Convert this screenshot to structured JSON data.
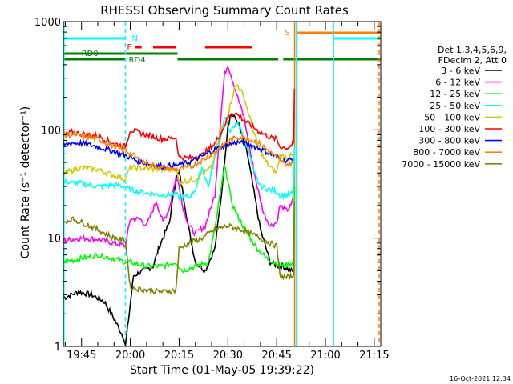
{
  "chart_data": {
    "type": "line",
    "title": "RHESSI Observing Summary Count Rates",
    "ylabel": "Count Rate (s⁻¹ detector⁻¹)",
    "xlabel": "Start Time (01-May-05 19:39:22)",
    "yscale": "log",
    "ylim": [
      1,
      1000
    ],
    "xlim_minutes": [
      39.4,
      137.0
    ],
    "x_ticks": [
      {
        "t": 45,
        "label": "19:45"
      },
      {
        "t": 60,
        "label": "20:00"
      },
      {
        "t": 75,
        "label": "20:15"
      },
      {
        "t": 90,
        "label": "20:30"
      },
      {
        "t": 105,
        "label": "20:45"
      },
      {
        "t": 120,
        "label": "21:00"
      },
      {
        "t": 135,
        "label": "21:15"
      }
    ],
    "y_ticks": [
      {
        "v": 1,
        "label": "1"
      },
      {
        "v": 10,
        "label": "10"
      },
      {
        "v": 100,
        "label": "100"
      },
      {
        "v": 1000,
        "label": "1000"
      }
    ],
    "legend_header": [
      "Det 1,3,4,5,6,9,",
      "FDecim 2, Att 0"
    ],
    "legend_position": "right",
    "timestamp": "16-Oct-2021 12:34",
    "x_units": "minutes after 19:00 UT",
    "flag_labels": {
      "saa": "N",
      "flare": "F",
      "rd0": "RD0",
      "rd4": "RD4",
      "attenuator": "S"
    },
    "flag_bars": {
      "saa": {
        "color": "#00ffff",
        "segments": [
          [
            39.4,
            58.5
          ],
          [
            122.5,
            137.0
          ]
        ]
      },
      "flare": {
        "color": "#ff0000",
        "segments": [
          [
            61.5,
            63.5
          ],
          [
            67.0,
            74.0
          ],
          [
            83.0,
            97.5
          ]
        ]
      },
      "rd0": {
        "color": "#008000",
        "segments": [
          [
            39.4,
            74.5
          ]
        ]
      },
      "rd4": {
        "color": "#008000",
        "segments": [
          [
            39.4,
            58.5
          ],
          [
            74.5,
            105.5
          ],
          [
            107.0,
            137.0
          ]
        ]
      },
      "attenuator": {
        "color": "#ff8000",
        "segments": [
          [
            111.0,
            137.0
          ]
        ]
      }
    },
    "vertical_lines": [
      {
        "t": 39.6,
        "color": "#00ffff",
        "style": "solid"
      },
      {
        "t": 58.5,
        "color": "#00ffff",
        "style": "dashed"
      },
      {
        "t": 110.5,
        "color": "#ff8000",
        "style": "solid"
      },
      {
        "t": 111.0,
        "color": "#00ffff",
        "style": "solid"
      },
      {
        "t": 122.5,
        "color": "#00ffff",
        "style": "solid"
      },
      {
        "t": 136.5,
        "color": "#ff8000",
        "style": "dashed"
      }
    ],
    "series": [
      {
        "name": "3 - 6 keV",
        "color": "#000000",
        "points": [
          [
            39.5,
            2.8
          ],
          [
            44,
            3.2
          ],
          [
            48,
            3.0
          ],
          [
            52,
            2.6
          ],
          [
            55,
            1.8
          ],
          [
            58,
            1.2
          ],
          [
            58.5,
            1.0
          ],
          [
            61,
            4.5
          ],
          [
            64,
            5.0
          ],
          [
            67,
            5.5
          ],
          [
            69,
            8.5
          ],
          [
            72,
            14
          ],
          [
            74,
            35
          ],
          [
            75,
            40
          ],
          [
            76,
            28
          ],
          [
            78,
            12
          ],
          [
            80,
            6
          ],
          [
            83,
            5
          ],
          [
            86,
            8
          ],
          [
            88,
            25
          ],
          [
            90,
            110
          ],
          [
            91,
            140
          ],
          [
            93,
            120
          ],
          [
            96,
            60
          ],
          [
            100,
            12
          ],
          [
            103,
            6
          ],
          [
            105.5,
            5.5
          ],
          [
            107,
            5.5
          ],
          [
            109.5,
            5.0
          ],
          [
            110.2,
            4.8
          ]
        ]
      },
      {
        "name": "6 - 12 keV",
        "color": "#ff00ff",
        "points": [
          [
            39.5,
            9.5
          ],
          [
            45,
            10
          ],
          [
            50,
            9.8
          ],
          [
            55,
            9
          ],
          [
            58.5,
            8.5
          ],
          [
            60,
            15
          ],
          [
            63,
            15
          ],
          [
            65,
            13
          ],
          [
            68,
            22
          ],
          [
            70,
            14
          ],
          [
            72,
            19
          ],
          [
            74,
            36
          ],
          [
            75,
            32
          ],
          [
            76,
            20
          ],
          [
            78,
            13
          ],
          [
            80,
            11
          ],
          [
            83,
            13
          ],
          [
            86,
            25
          ],
          [
            88,
            150
          ],
          [
            89,
            330
          ],
          [
            90,
            400
          ],
          [
            91,
            320
          ],
          [
            93,
            200
          ],
          [
            95,
            130
          ],
          [
            97,
            60
          ],
          [
            99,
            30
          ],
          [
            101,
            17
          ],
          [
            103,
            13
          ],
          [
            105,
            14
          ],
          [
            106,
            20
          ],
          [
            108,
            18
          ],
          [
            109.5,
            20
          ],
          [
            110.2,
            24
          ]
        ]
      },
      {
        "name": "12 - 25 keV",
        "color": "#00ff00",
        "points": [
          [
            39.5,
            6
          ],
          [
            45,
            6.5
          ],
          [
            50,
            7
          ],
          [
            55,
            6.5
          ],
          [
            58.5,
            6
          ],
          [
            60,
            6
          ],
          [
            65,
            5.5
          ],
          [
            70,
            5.5
          ],
          [
            74,
            6
          ],
          [
            76,
            5
          ],
          [
            80,
            5.5
          ],
          [
            84,
            6
          ],
          [
            86,
            12
          ],
          [
            88,
            30
          ],
          [
            89,
            45
          ],
          [
            90,
            35
          ],
          [
            91,
            22
          ],
          [
            93,
            16
          ],
          [
            96,
            11
          ],
          [
            99,
            8
          ],
          [
            102,
            6.5
          ],
          [
            105,
            5.8
          ],
          [
            107,
            5.5
          ],
          [
            110.2,
            6
          ]
        ]
      },
      {
        "name": "25 - 50 keV",
        "color": "#00ffff",
        "points": [
          [
            39.5,
            33
          ],
          [
            45,
            32
          ],
          [
            50,
            30
          ],
          [
            55,
            31
          ],
          [
            58.5,
            30
          ],
          [
            60,
            28
          ],
          [
            65,
            26
          ],
          [
            70,
            25
          ],
          [
            74,
            25.5
          ],
          [
            75,
            24
          ],
          [
            78,
            24
          ],
          [
            80,
            28
          ],
          [
            82,
            45
          ],
          [
            84,
            30
          ],
          [
            86,
            55
          ],
          [
            88,
            90
          ],
          [
            89,
            130
          ],
          [
            90,
            110
          ],
          [
            91,
            95
          ],
          [
            93,
            120
          ],
          [
            94,
            100
          ],
          [
            96,
            70
          ],
          [
            98,
            40
          ],
          [
            100,
            30
          ],
          [
            103,
            28
          ],
          [
            105,
            27
          ],
          [
            106,
            25
          ],
          [
            108,
            25
          ],
          [
            110.2,
            26
          ]
        ]
      },
      {
        "name": "50 - 100 keV",
        "color": "#cccc00",
        "points": [
          [
            39.5,
            40
          ],
          [
            45,
            45
          ],
          [
            50,
            43
          ],
          [
            55,
            38
          ],
          [
            58.5,
            35
          ],
          [
            60,
            45
          ],
          [
            65,
            44
          ],
          [
            70,
            43
          ],
          [
            74,
            44
          ],
          [
            75,
            33
          ],
          [
            80,
            35
          ],
          [
            85,
            45
          ],
          [
            88,
            100
          ],
          [
            90,
            140
          ],
          [
            92,
            240
          ],
          [
            93,
            260
          ],
          [
            95,
            200
          ],
          [
            97,
            120
          ],
          [
            99,
            75
          ],
          [
            101,
            55
          ],
          [
            103,
            45
          ],
          [
            105,
            40
          ],
          [
            106,
            58
          ],
          [
            108,
            56
          ],
          [
            110.2,
            58
          ]
        ]
      },
      {
        "name": "100 - 300 keV",
        "color": "#ff0000",
        "points": [
          [
            39.5,
            88
          ],
          [
            42,
            95
          ],
          [
            45,
            92
          ],
          [
            50,
            88
          ],
          [
            55,
            75
          ],
          [
            58.5,
            70
          ],
          [
            60,
            100
          ],
          [
            65,
            90
          ],
          [
            70,
            82
          ],
          [
            74,
            85
          ],
          [
            75,
            56
          ],
          [
            78,
            55
          ],
          [
            82,
            58
          ],
          [
            86,
            75
          ],
          [
            88,
            95
          ],
          [
            90,
            130
          ],
          [
            92,
            145
          ],
          [
            94,
            130
          ],
          [
            97,
            110
          ],
          [
            100,
            95
          ],
          [
            103,
            85
          ],
          [
            105,
            82
          ],
          [
            106,
            70
          ],
          [
            108,
            68
          ],
          [
            109,
            70
          ],
          [
            110.2,
            75
          ]
        ]
      },
      {
        "name": "300 - 800 keV",
        "color": "#0000ff",
        "points": [
          [
            39.5,
            72
          ],
          [
            42,
            76
          ],
          [
            45,
            75
          ],
          [
            50,
            70
          ],
          [
            55,
            63
          ],
          [
            58.5,
            58
          ],
          [
            62,
            52
          ],
          [
            66,
            48
          ],
          [
            70,
            46
          ],
          [
            74,
            47
          ],
          [
            78,
            50
          ],
          [
            82,
            57
          ],
          [
            86,
            66
          ],
          [
            90,
            73
          ],
          [
            93,
            77
          ],
          [
            96,
            74
          ],
          [
            100,
            67
          ],
          [
            103,
            60
          ],
          [
            106,
            54
          ],
          [
            108,
            52
          ],
          [
            110.2,
            54
          ]
        ]
      },
      {
        "name": "800 - 7000 keV",
        "color": "#ff8000",
        "points": [
          [
            39.5,
            88
          ],
          [
            42,
            90
          ],
          [
            45,
            88
          ],
          [
            50,
            82
          ],
          [
            55,
            70
          ],
          [
            58.5,
            65
          ],
          [
            62,
            55
          ],
          [
            66,
            48
          ],
          [
            70,
            44
          ],
          [
            74,
            43
          ],
          [
            78,
            45
          ],
          [
            82,
            52
          ],
          [
            86,
            62
          ],
          [
            90,
            78
          ],
          [
            93,
            86
          ],
          [
            96,
            84
          ],
          [
            100,
            74
          ],
          [
            103,
            62
          ],
          [
            106,
            52
          ],
          [
            108,
            48
          ],
          [
            110.2,
            50
          ]
        ]
      },
      {
        "name": "7000 - 15000 keV",
        "color": "#808000",
        "points": [
          [
            39.5,
            14
          ],
          [
            42,
            15
          ],
          [
            45,
            14
          ],
          [
            50,
            12
          ],
          [
            55,
            10
          ],
          [
            58.5,
            9.5
          ],
          [
            60,
            3.5
          ],
          [
            65,
            3.3
          ],
          [
            70,
            3.2
          ],
          [
            74,
            3.3
          ],
          [
            75,
            8
          ],
          [
            78,
            9
          ],
          [
            82,
            10
          ],
          [
            86,
            12
          ],
          [
            90,
            13
          ],
          [
            94,
            12
          ],
          [
            97,
            11
          ],
          [
            100,
            10
          ],
          [
            103,
            9
          ],
          [
            105,
            8.5
          ],
          [
            106,
            4.5
          ],
          [
            108,
            4.3
          ],
          [
            110.2,
            4.5
          ]
        ]
      }
    ],
    "spikes": [
      {
        "t": 110.2,
        "values": [
          [
            "100 - 300 keV",
            240
          ],
          [
            "25 - 50 keV",
            70
          ],
          [
            "12 - 25 keV",
            30
          ],
          [
            "7000 - 15000 keV",
            22
          ]
        ]
      }
    ]
  }
}
